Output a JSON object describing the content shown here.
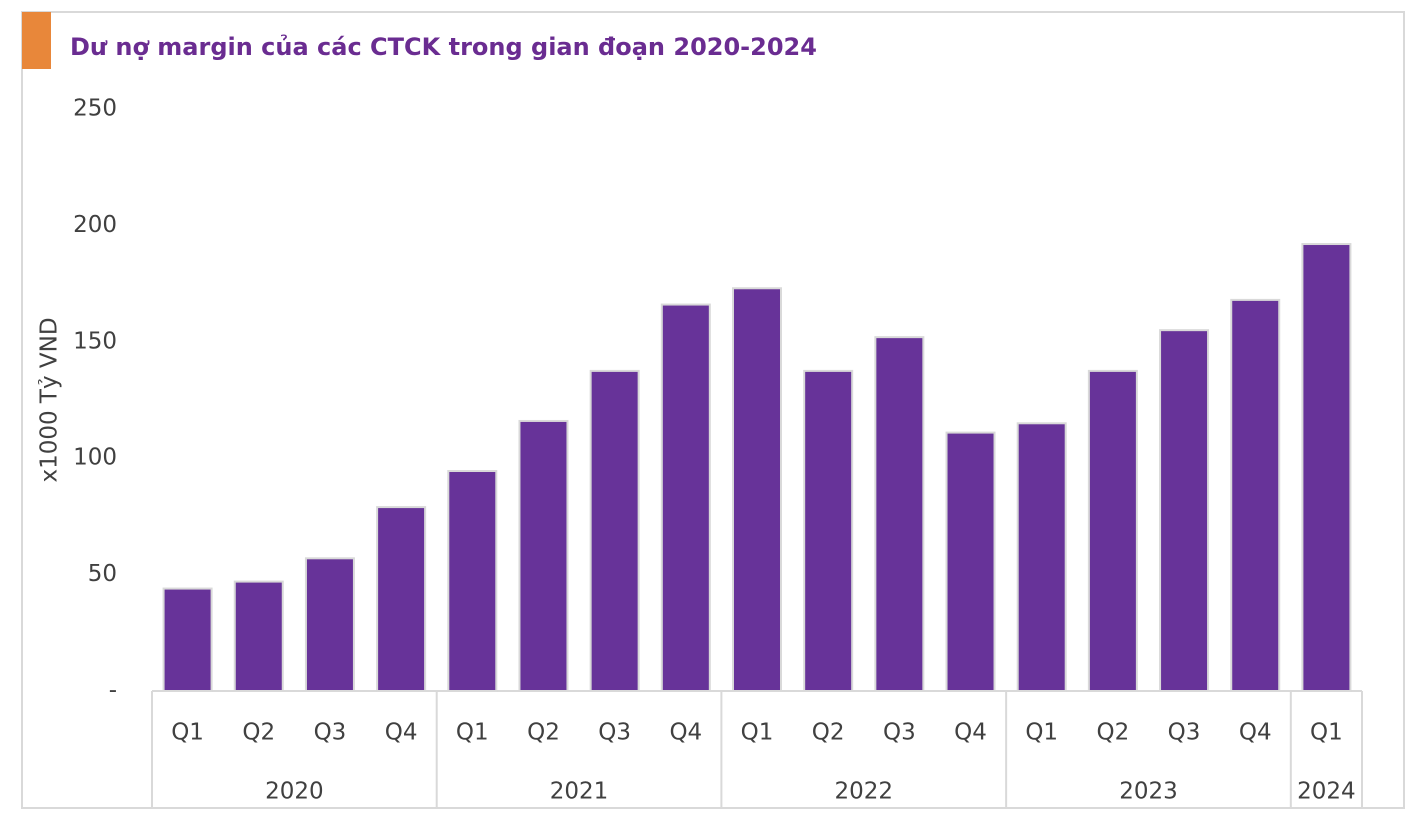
{
  "chart_data": {
    "type": "bar",
    "title": "Dư nợ margin của các CTCK trong gian đoạn 2020-2024",
    "y_label": "x1000 Tỷ VND",
    "groups": [
      {
        "name": "2020",
        "categories": [
          "Q1",
          "Q2",
          "Q3",
          "Q4"
        ]
      },
      {
        "name": "2021",
        "categories": [
          "Q1",
          "Q2",
          "Q3",
          "Q4"
        ]
      },
      {
        "name": "2022",
        "categories": [
          "Q1",
          "Q2",
          "Q3",
          "Q4"
        ]
      },
      {
        "name": "2023",
        "categories": [
          "Q1",
          "Q2",
          "Q3",
          "Q4"
        ]
      },
      {
        "name": "2024",
        "categories": [
          "Q1"
        ]
      }
    ],
    "values": [
      44,
      47,
      57,
      79,
      94.5,
      116,
      137.5,
      166,
      173,
      137.5,
      152,
      111,
      115,
      137.5,
      155,
      168,
      192
    ],
    "color": "#673399",
    "ylim": [
      0,
      250
    ],
    "yticks": [
      {
        "value": 0,
        "label": "-"
      },
      50,
      100,
      150,
      200,
      250
    ],
    "grid": false
  }
}
